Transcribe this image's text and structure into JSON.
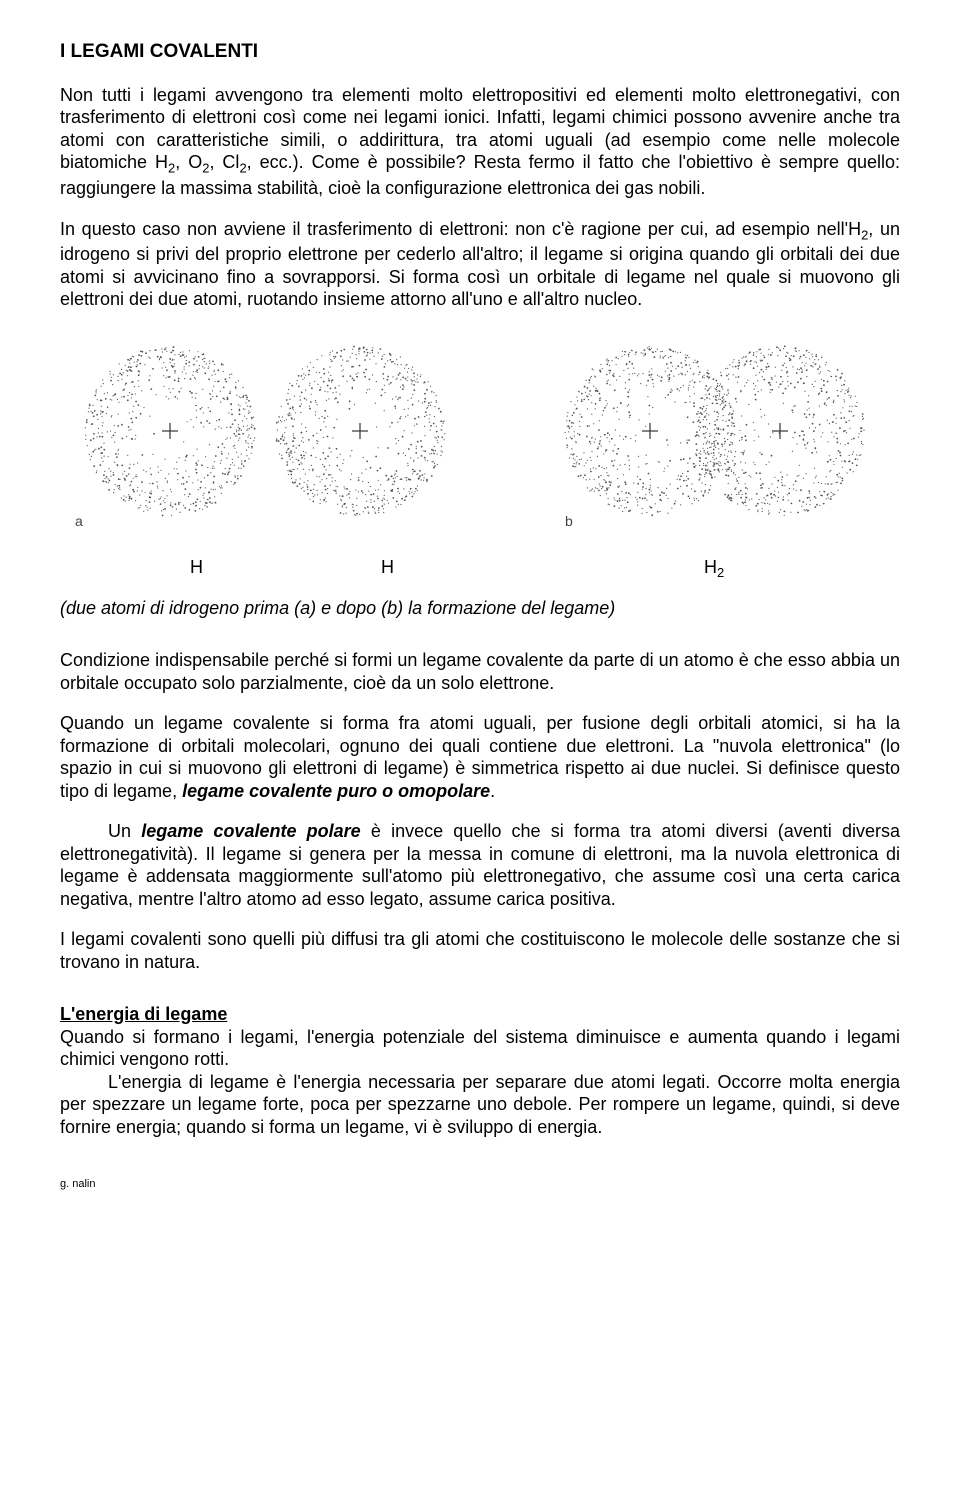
{
  "title": "I LEGAMI COVALENTI",
  "p1a": "Non tutti i legami avvengono tra elementi molto elettropositivi ed elementi molto elettronegativi, con trasferimento di elettroni così come nei legami ionici. Infatti, legami chimici possono avvenire anche tra atomi con caratteristiche simili, o addirittura, tra atomi uguali (ad esempio come nelle molecole biatomiche H",
  "p1b": ", O",
  "p1c": ", Cl",
  "p1d": ", ecc.). Come è possibile? Resta fermo il fatto che l'obiettivo è sempre quello: raggiungere la massima stabilità, cioè la configurazione elettronica dei gas nobili.",
  "sub2": "2",
  "p2a": "In questo caso non avviene il trasferimento di elettroni: non c'è ragione per cui, ad esempio nell'H",
  "p2b": ", un idrogeno si privi del proprio elettrone per cederlo all'altro; il legame si origina  quando gli orbitali dei due atomi si avvicinano fino a sovrapporsi. Si forma così un orbitale di legame nel quale si muovono gli elettroni dei due atomi, ruotando insieme attorno all'uno e all'altro nucleo.",
  "diagram": {
    "labels_a": "a",
    "labels_b": "b",
    "atom_radius": 85,
    "dot_color": "#555555",
    "bg": "#ffffff"
  },
  "label_H": "H",
  "label_H2": "H",
  "caption": "(due atomi di idrogeno prima (a) e dopo (b) la formazione del legame)",
  "p3": "Condizione indispensabile perché si formi un legame covalente da parte di un atomo è che esso abbia un orbitale occupato solo parzialmente, cioè da un solo elettrone.",
  "p4a": "Quando un legame covalente si forma fra atomi uguali, per fusione degli orbitali atomici, si ha la formazione di orbitali molecolari, ognuno dei quali contiene due elettroni. La \"nuvola elettronica\" (lo spazio in cui si muovono gli elettroni di legame) è simmetrica rispetto ai due nuclei. Si definisce questo tipo di legame,",
  "p4term": " legame covalente puro o omopolare",
  "p5a": "Un ",
  "p5term": "legame covalente polare",
  "p5b": " è invece quello che si forma tra atomi diversi (aventi diversa elettronegatività). Il legame si genera per la messa in comune di elettroni, ma la nuvola elettronica di legame è addensata maggiormente sull'atomo più elettronegativo, che assume così una certa carica negativa, mentre l'altro atomo ad esso legato, assume carica positiva.",
  "p6": "I legami covalenti sono quelli più diffusi tra gli atomi che costituiscono le molecole delle sostanze che si trovano in natura.",
  "section_title": "L'energia di legame",
  "p7": "Quando si formano i legami, l'energia potenziale del sistema diminuisce e aumenta quando i legami chimici vengono rotti.",
  "p8": "L'energia di legame è l'energia necessaria per separare due atomi legati. Occorre molta energia per spezzare un legame forte, poca per spezzarne uno debole. Per rompere un legame, quindi, si deve fornire energia; quando si forma un legame, vi è sviluppo di energia.",
  "footer": "g. nalin",
  "colors": {
    "text": "#000000",
    "bg": "#ffffff"
  }
}
